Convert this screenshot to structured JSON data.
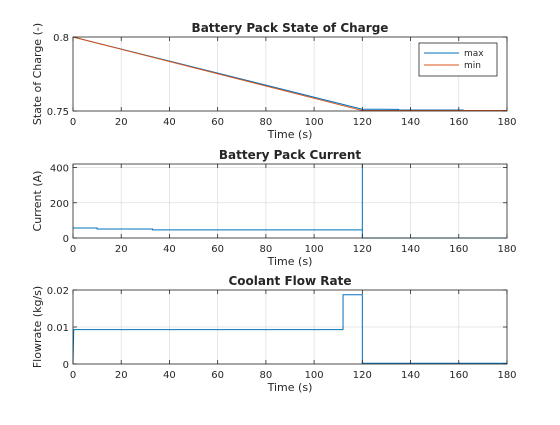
{
  "chart_data": [
    {
      "type": "line",
      "title": "Battery Pack State of Charge",
      "xlabel": "Time (s)",
      "ylabel": "State of Charge (-)",
      "xlim": [
        0,
        180
      ],
      "ylim": [
        0.75,
        0.8
      ],
      "xticks": [
        0,
        20,
        40,
        60,
        80,
        100,
        120,
        140,
        160,
        180
      ],
      "yticks": [
        0.75,
        0.8
      ],
      "ytick_labels": [
        "0.75",
        "0.8"
      ],
      "grid": true,
      "legend_position": "top-right",
      "series": [
        {
          "name": "max",
          "color": "#0072BD",
          "x": [
            0,
            120,
            135,
            135,
            162
          ],
          "y": [
            0.8,
            0.7512,
            0.7511,
            0.7507,
            0.7507
          ]
        },
        {
          "name": "min",
          "color": "#D95319",
          "x": [
            0,
            120,
            180
          ],
          "y": [
            0.8,
            0.7503,
            0.7503
          ]
        }
      ]
    },
    {
      "type": "line",
      "title": "Battery Pack Current",
      "xlabel": "Time (s)",
      "ylabel": "Current (A)",
      "xlim": [
        0,
        180
      ],
      "ylim": [
        0,
        420
      ],
      "xticks": [
        0,
        20,
        40,
        60,
        80,
        100,
        120,
        140,
        160,
        180
      ],
      "yticks": [
        0,
        200,
        400
      ],
      "ytick_labels": [
        "0",
        "200",
        "400"
      ],
      "grid": true,
      "series": [
        {
          "color": "#0072BD",
          "x": [
            0,
            10,
            10,
            33,
            33,
            120,
            120,
            120,
            180
          ],
          "y": [
            57,
            57,
            51,
            51,
            46,
            46,
            420,
            0,
            0
          ]
        }
      ]
    },
    {
      "type": "line",
      "title": "Coolant Flow Rate",
      "xlabel": "Time (s)",
      "ylabel": "Flowrate (kg/s)",
      "xlim": [
        0,
        180
      ],
      "ylim": [
        0,
        0.02
      ],
      "xticks": [
        0,
        20,
        40,
        60,
        80,
        100,
        120,
        140,
        160,
        180
      ],
      "yticks": [
        0,
        0.01,
        0.02
      ],
      "ytick_labels": [
        "0",
        "0.01",
        "0.02"
      ],
      "grid": true,
      "series": [
        {
          "color": "#0072BD",
          "x": [
            0,
            0.3,
            112,
            112,
            120,
            120,
            180
          ],
          "y": [
            0,
            0.0093,
            0.0093,
            0.0187,
            0.0187,
            0.0002,
            0.0002
          ]
        }
      ]
    }
  ]
}
